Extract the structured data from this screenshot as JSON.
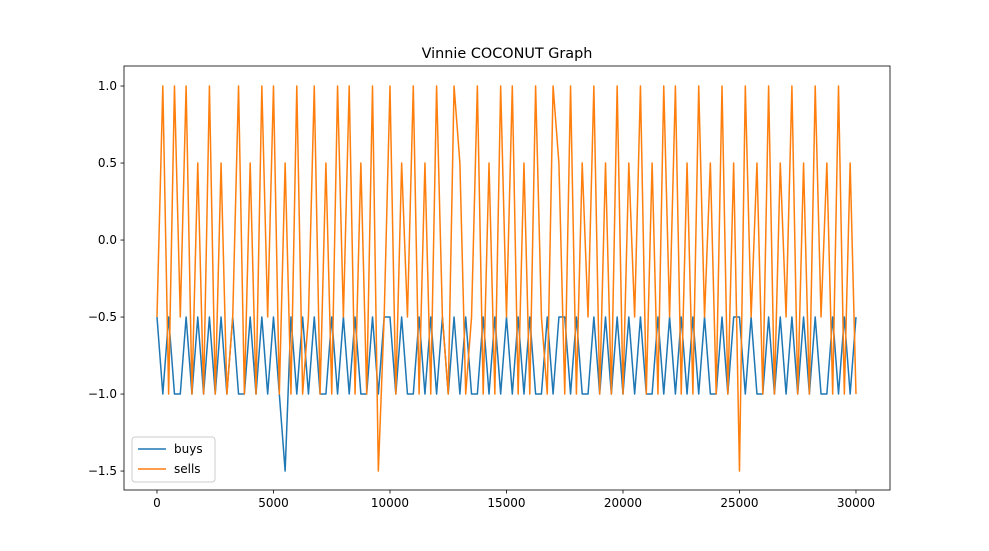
{
  "chart_data": {
    "type": "line",
    "title": "Vinnie COCONUT Graph",
    "x": [
      0,
      250,
      500,
      750,
      1000,
      1250,
      1500,
      1750,
      2000,
      2250,
      2500,
      2750,
      3000,
      3250,
      3500,
      3750,
      4000,
      4250,
      4500,
      4750,
      5000,
      5250,
      5500,
      5750,
      6000,
      6250,
      6500,
      6750,
      7000,
      7250,
      7500,
      7750,
      8000,
      8250,
      8500,
      8750,
      9000,
      9250,
      9500,
      9750,
      10000,
      10250,
      10500,
      10750,
      11000,
      11250,
      11500,
      11750,
      12000,
      12250,
      12500,
      12750,
      13000,
      13250,
      13500,
      13750,
      14000,
      14250,
      14500,
      14750,
      15000,
      15250,
      15500,
      15750,
      16000,
      16250,
      16500,
      16750,
      17000,
      17250,
      17500,
      17750,
      18000,
      18250,
      18500,
      18750,
      19000,
      19250,
      19500,
      19750,
      20000,
      20250,
      20500,
      20750,
      21000,
      21250,
      21500,
      21750,
      22000,
      22250,
      22500,
      22750,
      23000,
      23250,
      23500,
      23750,
      24000,
      24250,
      24500,
      24750,
      25000,
      25250,
      25500,
      25750,
      26000,
      26250,
      26500,
      26750,
      27000,
      27250,
      27500,
      27750,
      28000,
      28250,
      28500,
      28750,
      29000,
      29250,
      29500,
      29750,
      30000
    ],
    "series": [
      {
        "name": "buys",
        "color": "#1f77b4",
        "values": [
          -0.5,
          -1,
          -0.5,
          -1,
          -1,
          -0.5,
          -1,
          -0.5,
          -1,
          -0.5,
          -1,
          -0.5,
          -1,
          -0.5,
          -1,
          -1,
          -0.5,
          -1,
          -0.5,
          -1,
          -0.5,
          -1,
          -1.5,
          -0.5,
          -1,
          -0.5,
          -1,
          -0.5,
          -1,
          -1,
          -0.5,
          -1,
          -0.5,
          -1,
          -0.5,
          -1,
          -1,
          -0.5,
          -1,
          -0.5,
          -0.5,
          -1,
          -0.5,
          -1,
          -1,
          -0.5,
          -1,
          -0.5,
          -1,
          -0.5,
          -1,
          -0.5,
          -1,
          -0.5,
          -1,
          -1,
          -0.5,
          -1,
          -0.5,
          -1,
          -0.5,
          -1,
          -0.5,
          -1,
          -0.5,
          -1,
          -1,
          -0.5,
          -1,
          -0.5,
          -0.5,
          -1,
          -0.5,
          -1,
          -1,
          -0.5,
          -1,
          -0.5,
          -1,
          -0.5,
          -1,
          -0.5,
          -1,
          -0.5,
          -1,
          -1,
          -0.5,
          -1,
          -0.5,
          -1,
          -0.5,
          -1,
          -0.5,
          -1,
          -0.5,
          -1,
          -1,
          -0.5,
          -1,
          -0.5,
          -0.5,
          -1,
          -0.5,
          -1,
          -1,
          -0.5,
          -1,
          -0.5,
          -1,
          -0.5,
          -1,
          -0.5,
          -1,
          -0.5,
          -1,
          -1,
          -0.5,
          -1,
          -0.5,
          -1,
          -0.5
        ]
      },
      {
        "name": "sells",
        "color": "#ff7f0e",
        "values": [
          -0.5,
          1,
          -1,
          1,
          -0.5,
          1,
          -1,
          0.5,
          -1,
          1,
          -1,
          0.5,
          -1,
          -0.5,
          1,
          -1,
          0.5,
          -1,
          1,
          -0.5,
          1,
          -1,
          0.5,
          -1,
          1,
          -1,
          -0.5,
          1,
          -1,
          0.5,
          -1,
          1,
          -0.5,
          1,
          -1,
          0.5,
          -1,
          1,
          -1.5,
          -0.5,
          1,
          -1,
          0.5,
          -0.5,
          1,
          -1,
          0.5,
          -1,
          1,
          -0.5,
          -1,
          1,
          0.5,
          -1,
          -0.5,
          1,
          -1,
          0.5,
          -1,
          1,
          -0.5,
          1,
          -1,
          0.5,
          -1,
          1,
          -0.5,
          -1,
          1,
          0.5,
          -1,
          1,
          -1,
          0.5,
          -0.5,
          1,
          -1,
          0.5,
          -1,
          1,
          -1,
          0.5,
          -0.5,
          1,
          -1,
          0.5,
          -1,
          1,
          -0.5,
          1,
          -1,
          0.5,
          -1,
          1,
          -0.5,
          0.5,
          -1,
          1,
          -1,
          0.5,
          -1.5,
          1,
          -0.5,
          0.5,
          -1,
          1,
          -1,
          0.5,
          -0.5,
          1,
          -1,
          0.5,
          -1,
          1,
          -0.5,
          0.5,
          -1,
          1,
          -1,
          0.5,
          -1
        ]
      }
    ],
    "xlim": [
      -1416,
      31460
    ],
    "ylim": [
      -1.623,
      1.13
    ],
    "xticks": [
      0,
      5000,
      10000,
      15000,
      20000,
      25000,
      30000
    ],
    "yticks": [
      {
        "value": -1.5,
        "label": "−1.5"
      },
      {
        "value": -1,
        "label": "−1.0"
      },
      {
        "value": -0.5,
        "label": "−0.5"
      },
      {
        "value": 0,
        "label": "0.0"
      },
      {
        "value": 0.5,
        "label": "0.5"
      },
      {
        "value": 1,
        "label": "1.0"
      }
    ],
    "legend": "lower left",
    "grid": false
  }
}
